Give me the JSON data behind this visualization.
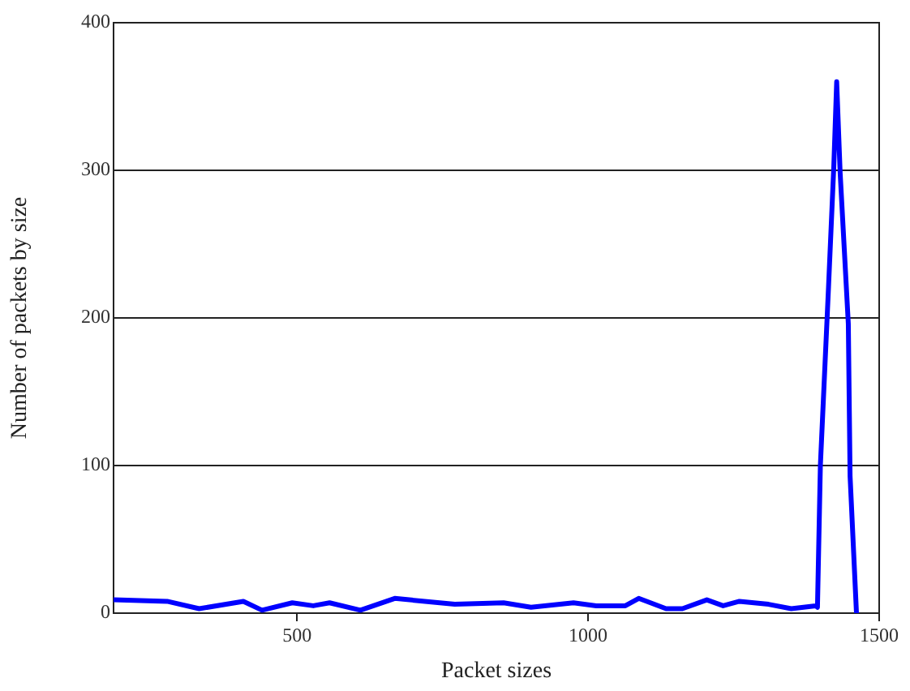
{
  "chart_data": {
    "type": "line",
    "xlabel": "Packet sizes",
    "ylabel": "Number of packets by size",
    "x": [
      185,
      277,
      332,
      408,
      440,
      492,
      528,
      556,
      609,
      668,
      771,
      855,
      902,
      975,
      1014,
      1064,
      1087,
      1134,
      1162,
      1204,
      1232,
      1260,
      1310,
      1349,
      1391,
      1394,
      1399,
      1413,
      1422,
      1427,
      1433,
      1447,
      1450,
      1461
    ],
    "series": [
      {
        "color": "#0000ff",
        "values": [
          9,
          8,
          3,
          8,
          2,
          7,
          5,
          7,
          2,
          10,
          6,
          7,
          4,
          7,
          5,
          5,
          10,
          3,
          3,
          9,
          5,
          8,
          6,
          3,
          5,
          4,
          100,
          221,
          302,
          360,
          298,
          196,
          93,
          0
        ]
      }
    ],
    "xlim": [
      185,
      1500
    ],
    "xticks": [
      500,
      1000,
      1500
    ],
    "ylim": [
      0,
      400
    ],
    "yticks": [
      0,
      100,
      200,
      300,
      400
    ],
    "grid": "y",
    "legend": false,
    "marker": "none",
    "line_style": "solid"
  }
}
